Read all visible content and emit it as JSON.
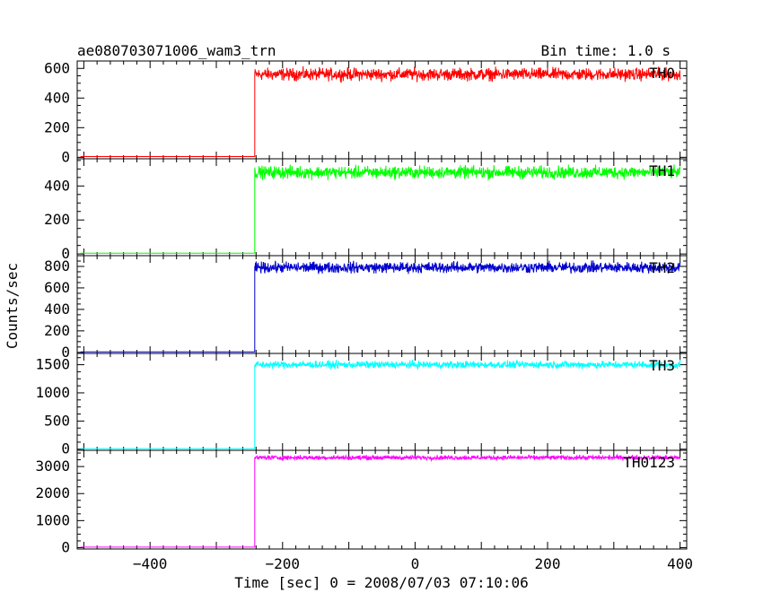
{
  "chart_data": {
    "type": "line",
    "title": "ae080703071006_wam3_trn",
    "subtitle": "Bin time: 1.0 s",
    "xlabel": "Time [sec] 0 = 2008/07/03 07:10:06",
    "ylabel": "Counts/sec",
    "xlim": [
      -510,
      410
    ],
    "xticks": [
      -400,
      -200,
      0,
      200,
      400
    ],
    "x_tick_labels": [
      "−400",
      "−200",
      "0",
      "200",
      "400"
    ],
    "step_time": -242,
    "grid": false,
    "panels": [
      {
        "name": "TH0",
        "color": "#ff0000",
        "ylim": [
          -10,
          650
        ],
        "yticks": [
          0,
          200,
          400,
          600
        ],
        "pre_level": 5,
        "post_level": 560,
        "noise_amp": 45
      },
      {
        "name": "TH1",
        "color": "#00ff00",
        "ylim": [
          -10,
          560
        ],
        "yticks": [
          0,
          200,
          400
        ],
        "pre_level": 5,
        "post_level": 480,
        "noise_amp": 40
      },
      {
        "name": "TH2",
        "color": "#0000cd",
        "ylim": [
          -10,
          900
        ],
        "yticks": [
          0,
          200,
          400,
          600,
          800
        ],
        "pre_level": 5,
        "post_level": 790,
        "noise_amp": 55
      },
      {
        "name": "TH3",
        "color": "#00ffff",
        "ylim": [
          -20,
          1700
        ],
        "yticks": [
          0,
          500,
          1000,
          1500
        ],
        "pre_level": 10,
        "post_level": 1500,
        "noise_amp": 70
      },
      {
        "name": "TH0123",
        "color": "#ff00ff",
        "ylim": [
          -50,
          3600
        ],
        "yticks": [
          0,
          1000,
          2000,
          3000
        ],
        "pre_level": 20,
        "post_level": 3330,
        "noise_amp": 90
      }
    ]
  }
}
